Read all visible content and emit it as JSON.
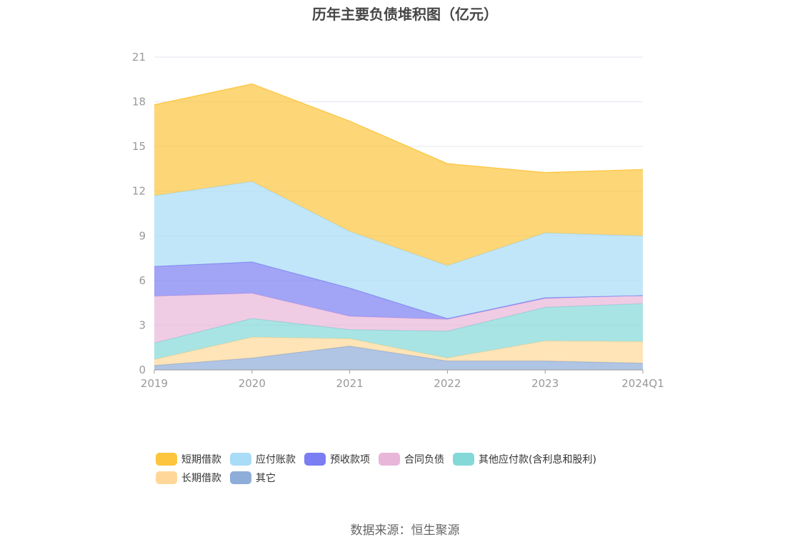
{
  "title": "历年主要负债堆积图（亿元）",
  "source": "数据来源：恒生聚源",
  "chart_data": {
    "type": "area",
    "stacked": true,
    "categories": [
      "2019",
      "2020",
      "2021",
      "2022",
      "2023",
      "2024Q1"
    ],
    "ylim": [
      0,
      21
    ],
    "yticks": [
      0,
      3,
      6,
      9,
      12,
      15,
      18,
      21
    ],
    "grid": true,
    "legend_position": "bottom",
    "series": [
      {
        "name": "其它",
        "color": "#8fadd9",
        "values": [
          0.3,
          0.8,
          1.6,
          0.6,
          0.6,
          0.45
        ]
      },
      {
        "name": "长期借款",
        "color": "#ffd899",
        "values": [
          0.4,
          1.4,
          0.5,
          0.2,
          1.35,
          1.45
        ]
      },
      {
        "name": "其他应付款(含利息和股利)",
        "color": "#85d8d8",
        "values": [
          1.1,
          1.25,
          0.6,
          1.8,
          2.25,
          2.55
        ]
      },
      {
        "name": "合同负债",
        "color": "#e8b6d9",
        "values": [
          3.15,
          1.7,
          0.9,
          0.8,
          0.6,
          0.55
        ]
      },
      {
        "name": "预收款项",
        "color": "#7b7df2",
        "values": [
          2.0,
          2.1,
          1.9,
          0.05,
          0.05,
          0.0
        ]
      },
      {
        "name": "应付账款",
        "color": "#a8dcf7",
        "values": [
          4.75,
          5.4,
          3.8,
          3.55,
          4.35,
          4.0
        ]
      },
      {
        "name": "短期借款",
        "color": "#fcc53d",
        "values": [
          6.1,
          6.55,
          7.4,
          6.85,
          4.05,
          4.45
        ]
      }
    ],
    "legend_order": [
      "短期借款",
      "应付账款",
      "预收款项",
      "合同负债",
      "其他应付款(含利息和股利)",
      "长期借款",
      "其它"
    ]
  }
}
